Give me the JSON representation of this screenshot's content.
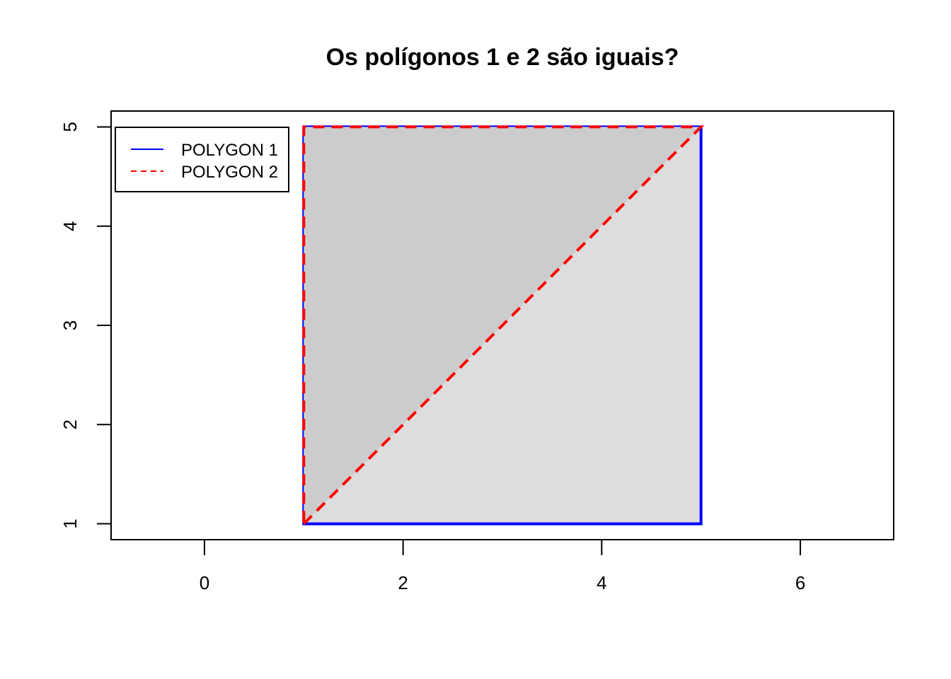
{
  "chart_data": {
    "type": "area",
    "title": "Os polígonos 1 e 2 são iguais?",
    "xlabel": "",
    "ylabel": "",
    "xlim": [
      -0.94,
      6.94
    ],
    "ylim": [
      0.84,
      5.16
    ],
    "x_ticks": [
      0,
      2,
      4,
      6
    ],
    "y_ticks": [
      1,
      2,
      3,
      4,
      5
    ],
    "grid": false,
    "legend": {
      "placement": "top-left",
      "entries": [
        {
          "label": "POLYGON 1",
          "color": "#0000ff",
          "line_style": "solid"
        },
        {
          "label": "POLYGON 2",
          "color": "#ff0000",
          "line_style": "dashed"
        }
      ]
    },
    "series": [
      {
        "name": "POLYGON 1",
        "color": "#0000ff",
        "fill": "#dddddd",
        "line_style": "solid",
        "points": [
          [
            1,
            1
          ],
          [
            5,
            1
          ],
          [
            5,
            5
          ],
          [
            1,
            5
          ]
        ]
      },
      {
        "name": "POLYGON 2",
        "color": "#ff0000",
        "fill": "#cccccc",
        "line_style": "dashed",
        "points": [
          [
            1,
            1
          ],
          [
            5,
            5
          ],
          [
            1,
            5
          ]
        ]
      }
    ]
  }
}
